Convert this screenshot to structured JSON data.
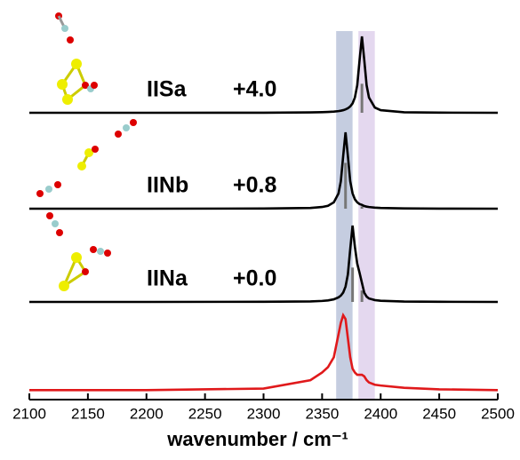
{
  "chart_data": {
    "type": "line",
    "x_label": "wavenumber / cm⁻¹",
    "xlim": [
      2100,
      2500
    ],
    "xticks": [
      2100,
      2150,
      2200,
      2250,
      2300,
      2350,
      2400,
      2450,
      2500
    ],
    "bands": [
      {
        "color": "#c5cde0",
        "range": [
          2362,
          2376
        ]
      },
      {
        "color": "#e4d8ef",
        "range": [
          2381,
          2395
        ]
      }
    ],
    "x": [
      2100,
      2200,
      2300,
      2340,
      2350,
      2355,
      2360,
      2364,
      2366,
      2368,
      2370,
      2372,
      2374,
      2376,
      2378,
      2380,
      2382,
      2384,
      2386,
      2388,
      2390,
      2395,
      2400,
      2420,
      2450,
      2500
    ],
    "series": [
      {
        "label": "IISa",
        "energy_label": "+4.0",
        "color": "#000000",
        "values": [
          0,
          0,
          0.001,
          0.005,
          0.008,
          0.011,
          0.015,
          0.022,
          0.027,
          0.034,
          0.044,
          0.059,
          0.083,
          0.123,
          0.2,
          0.36,
          0.69,
          1,
          0.69,
          0.36,
          0.2,
          0.069,
          0.034,
          0.007,
          0.002,
          0
        ],
        "sticks": {
          "x": [
            2384
          ],
          "values": [
            0.38
          ]
        }
      },
      {
        "label": "IINb",
        "energy_label": "+0.8",
        "color": "#000000",
        "values": [
          0,
          0,
          0.002,
          0.01,
          0.022,
          0.038,
          0.083,
          0.2,
          0.36,
          0.69,
          1,
          0.69,
          0.36,
          0.2,
          0.123,
          0.083,
          0.06,
          0.05,
          0.035,
          0.027,
          0.022,
          0.014,
          0.01,
          0.004,
          0.001,
          0
        ],
        "sticks": {
          "x": [
            2370,
            2384
          ],
          "values": [
            0.6,
            0.03
          ]
        }
      },
      {
        "label": "IINa",
        "energy_label": "+0.0",
        "color": "#000000",
        "values": [
          0,
          0,
          0.002,
          0.007,
          0.013,
          0.02,
          0.034,
          0.06,
          0.083,
          0.123,
          0.2,
          0.36,
          0.69,
          1,
          0.72,
          0.5,
          0.38,
          0.25,
          0.12,
          0.07,
          0.045,
          0.024,
          0.015,
          0.005,
          0.002,
          0
        ],
        "sticks": {
          "x": [
            2376,
            2384
          ],
          "values": [
            0.45,
            0.15
          ]
        }
      },
      {
        "color": "#e0191b",
        "values": [
          0.02,
          0.02,
          0.04,
          0.15,
          0.25,
          0.32,
          0.45,
          0.75,
          0.9,
          1,
          0.95,
          0.7,
          0.45,
          0.3,
          0.25,
          0.22,
          0.22,
          0.22,
          0.2,
          0.15,
          0.12,
          0.09,
          0.08,
          0.05,
          0.03,
          0.02
        ]
      }
    ]
  }
}
